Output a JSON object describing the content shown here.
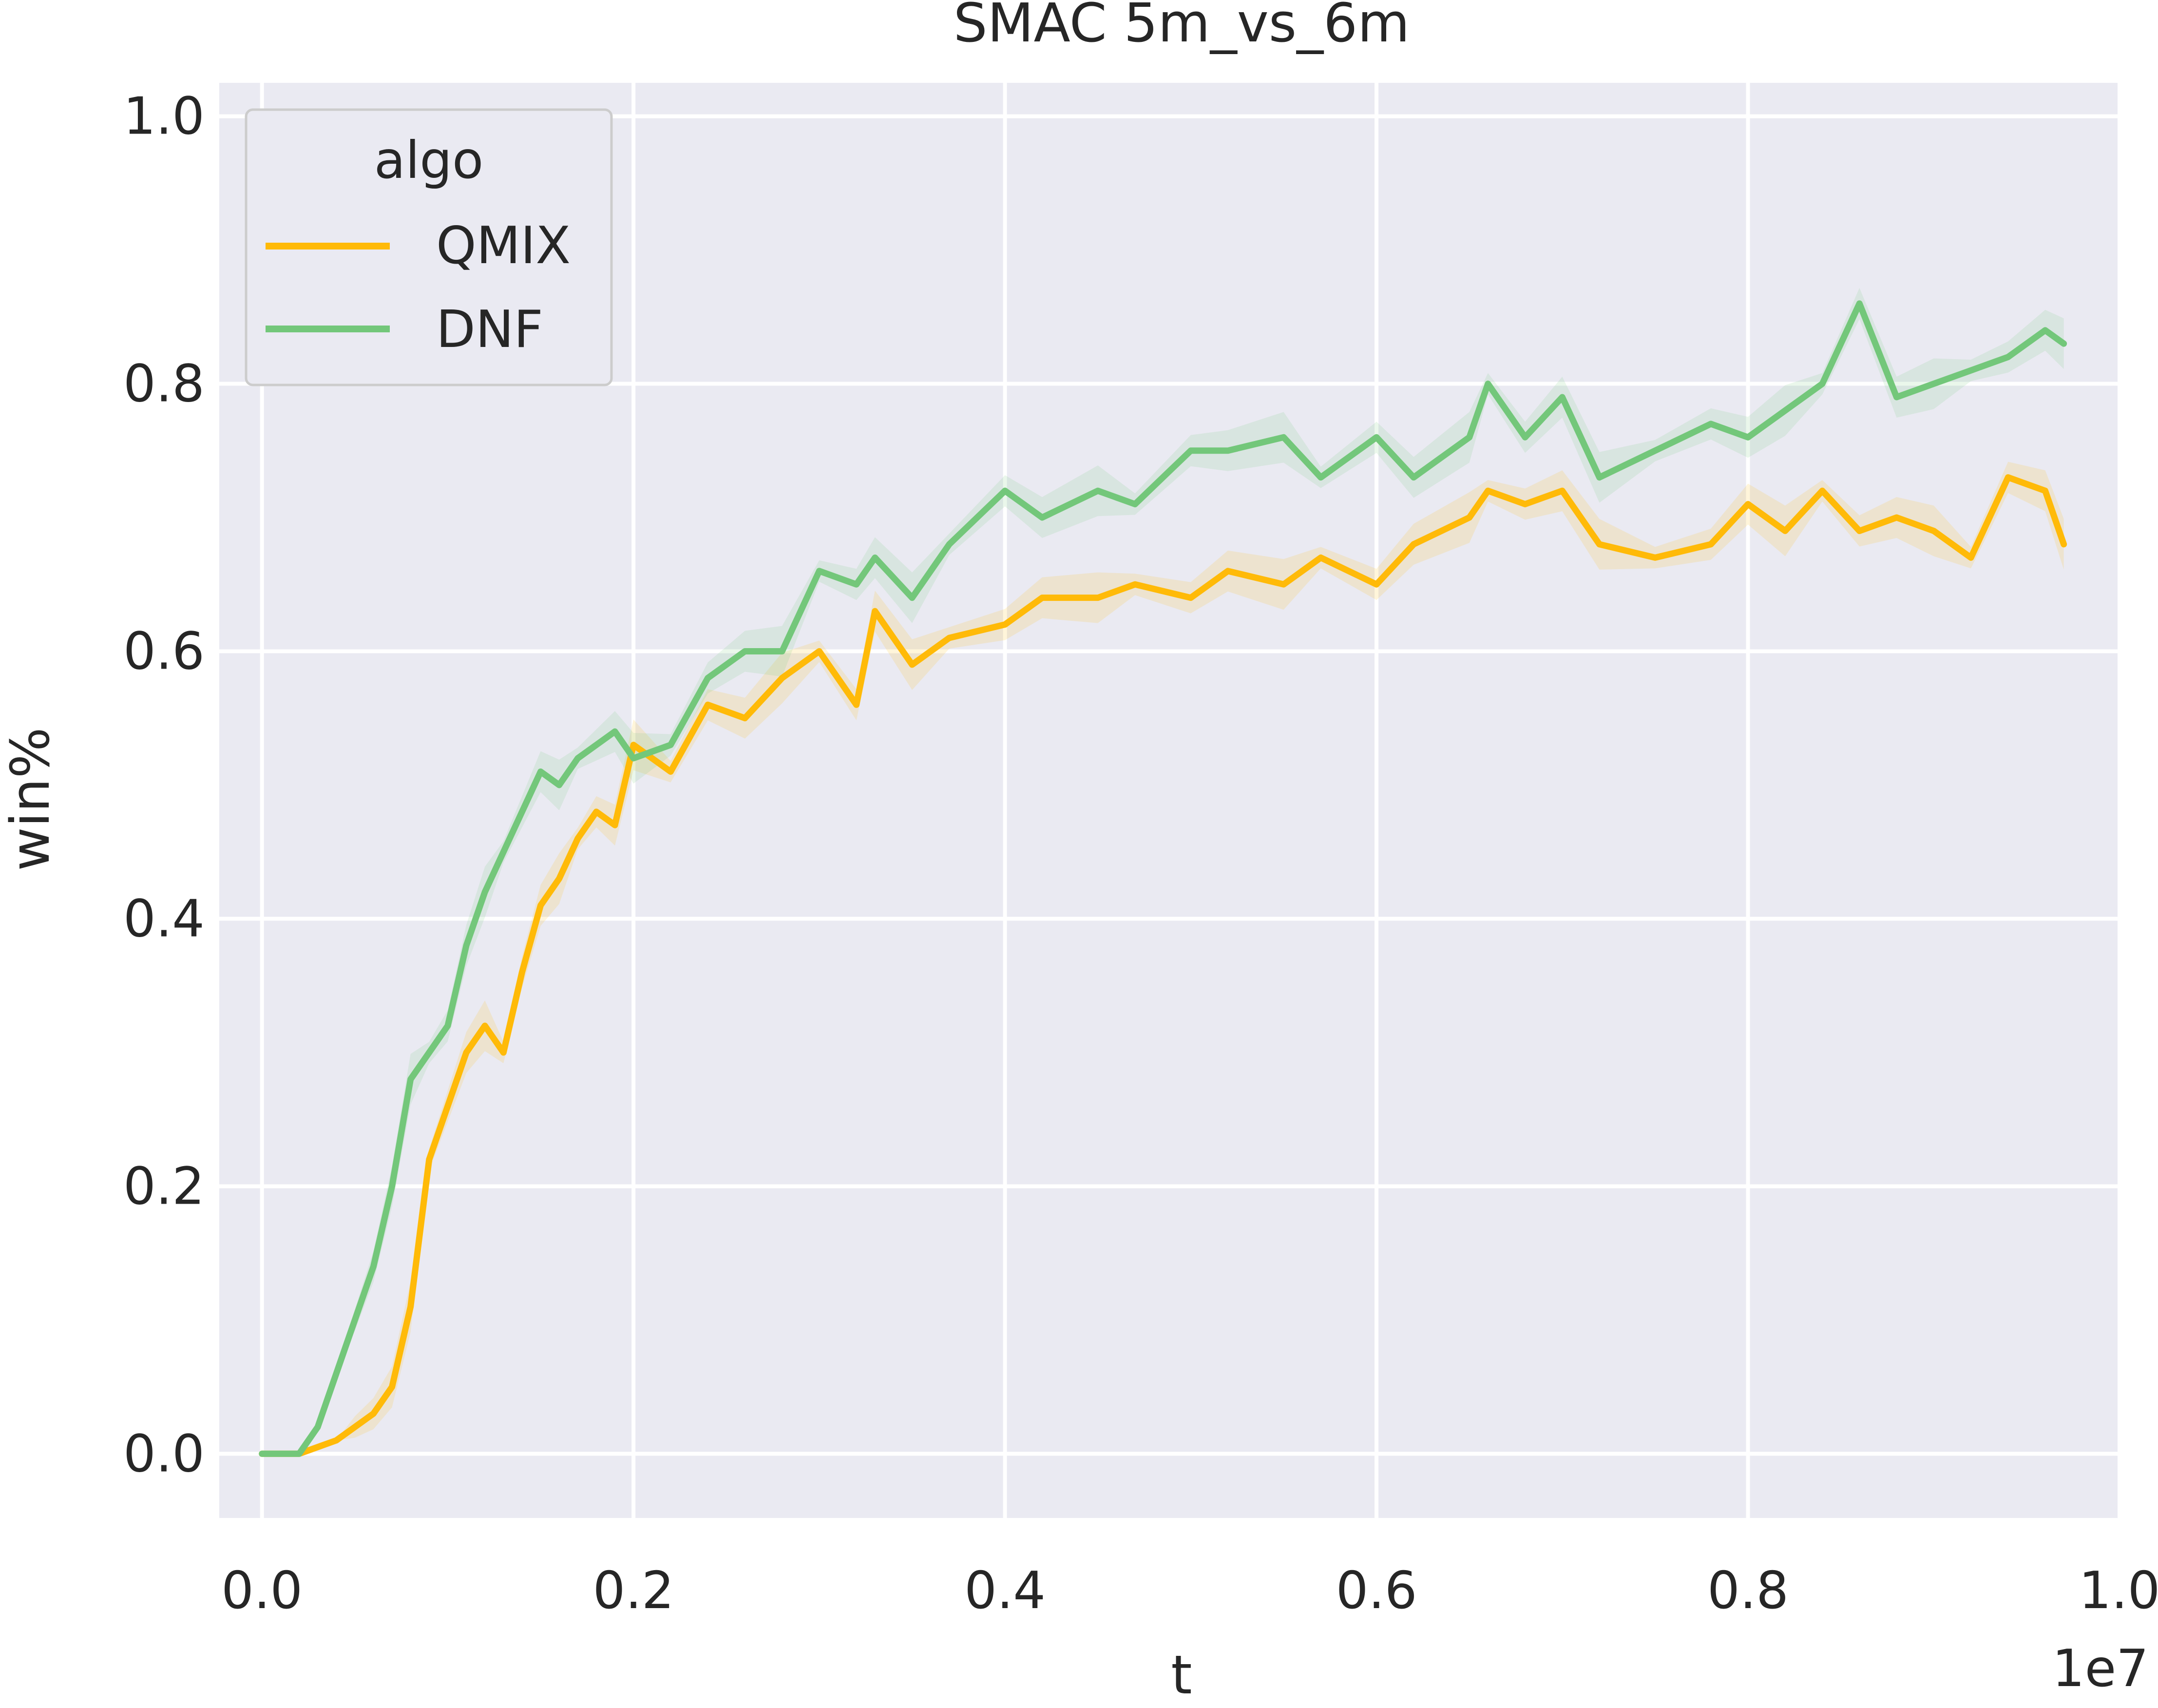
{
  "chart_data": {
    "type": "line",
    "title": "SMAC 5m_vs_6m",
    "xlabel": "t",
    "ylabel": "win%",
    "x_offset_label": "1e7",
    "xlim": [
      -0.023,
      1.0
    ],
    "ylim": [
      -0.048,
      1.025
    ],
    "x_ticks": [
      0.0,
      0.2,
      0.4,
      0.6,
      0.8,
      1.0
    ],
    "x_tick_labels": [
      "0.0",
      "0.2",
      "0.4",
      "0.6",
      "0.8",
      "1.0"
    ],
    "y_ticks": [
      0.0,
      0.2,
      0.4,
      0.6,
      0.8,
      1.0
    ],
    "y_tick_labels": [
      "0.0",
      "0.2",
      "0.4",
      "0.6",
      "0.8",
      "1.0"
    ],
    "grid": true,
    "background_color": "#EAEAF2",
    "legend": {
      "title": "algo",
      "position": "top-left"
    },
    "x": [
      0.0,
      0.02,
      0.03,
      0.04,
      0.05,
      0.06,
      0.07,
      0.08,
      0.09,
      0.1,
      0.11,
      0.12,
      0.13,
      0.14,
      0.15,
      0.16,
      0.17,
      0.18,
      0.19,
      0.2,
      0.22,
      0.24,
      0.26,
      0.28,
      0.3,
      0.32,
      0.33,
      0.35,
      0.37,
      0.4,
      0.42,
      0.45,
      0.47,
      0.5,
      0.52,
      0.55,
      0.57,
      0.6,
      0.62,
      0.65,
      0.66,
      0.68,
      0.7,
      0.72,
      0.75,
      0.78,
      0.8,
      0.82,
      0.84,
      0.86,
      0.88,
      0.9,
      0.92,
      0.94,
      0.96,
      0.97
    ],
    "series": [
      {
        "name": "QMIX",
        "color": "#FFBA08",
        "values": [
          0.0,
          0.0,
          0.005,
          0.01,
          0.02,
          0.03,
          0.05,
          0.11,
          0.22,
          0.26,
          0.3,
          0.32,
          0.3,
          0.36,
          0.41,
          0.43,
          0.46,
          0.48,
          0.47,
          0.53,
          0.51,
          0.56,
          0.55,
          0.58,
          0.6,
          0.56,
          0.63,
          0.59,
          0.61,
          0.62,
          0.64,
          0.64,
          0.65,
          0.64,
          0.66,
          0.65,
          0.67,
          0.65,
          0.68,
          0.7,
          0.72,
          0.71,
          0.72,
          0.68,
          0.67,
          0.68,
          0.71,
          0.69,
          0.72,
          0.69,
          0.7,
          0.69,
          0.67,
          0.73,
          0.72,
          0.68
        ]
      },
      {
        "name": "DNF",
        "color": "#73C77A",
        "values": [
          0.0,
          0.0,
          0.02,
          0.06,
          0.1,
          0.14,
          0.2,
          0.28,
          0.3,
          0.32,
          0.38,
          0.42,
          0.45,
          0.48,
          0.51,
          0.5,
          0.52,
          0.53,
          0.54,
          0.52,
          0.53,
          0.58,
          0.6,
          0.6,
          0.66,
          0.65,
          0.67,
          0.64,
          0.68,
          0.72,
          0.7,
          0.72,
          0.71,
          0.75,
          0.75,
          0.76,
          0.73,
          0.76,
          0.73,
          0.76,
          0.8,
          0.76,
          0.79,
          0.73,
          0.75,
          0.77,
          0.76,
          0.78,
          0.8,
          0.86,
          0.79,
          0.8,
          0.81,
          0.82,
          0.84,
          0.83
        ]
      }
    ]
  }
}
